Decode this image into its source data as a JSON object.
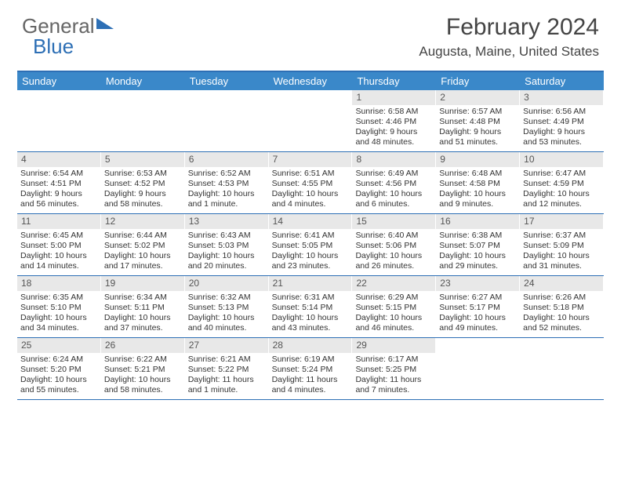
{
  "logo": {
    "part1": "General",
    "part2": "Blue"
  },
  "title": "February 2024",
  "location": "Augusta, Maine, United States",
  "daysOfWeek": [
    "Sunday",
    "Monday",
    "Tuesday",
    "Wednesday",
    "Thursday",
    "Friday",
    "Saturday"
  ],
  "colors": {
    "accent": "#2d6fb5",
    "headerBg": "#3a88c9",
    "dayNumBg": "#e8e8e8",
    "text": "#333333"
  },
  "weeks": [
    [
      {
        "empty": true
      },
      {
        "empty": true
      },
      {
        "empty": true
      },
      {
        "empty": true
      },
      {
        "day": "1",
        "sunrise": "Sunrise: 6:58 AM",
        "sunset": "Sunset: 4:46 PM",
        "daylight": "Daylight: 9 hours and 48 minutes."
      },
      {
        "day": "2",
        "sunrise": "Sunrise: 6:57 AM",
        "sunset": "Sunset: 4:48 PM",
        "daylight": "Daylight: 9 hours and 51 minutes."
      },
      {
        "day": "3",
        "sunrise": "Sunrise: 6:56 AM",
        "sunset": "Sunset: 4:49 PM",
        "daylight": "Daylight: 9 hours and 53 minutes."
      }
    ],
    [
      {
        "day": "4",
        "sunrise": "Sunrise: 6:54 AM",
        "sunset": "Sunset: 4:51 PM",
        "daylight": "Daylight: 9 hours and 56 minutes."
      },
      {
        "day": "5",
        "sunrise": "Sunrise: 6:53 AM",
        "sunset": "Sunset: 4:52 PM",
        "daylight": "Daylight: 9 hours and 58 minutes."
      },
      {
        "day": "6",
        "sunrise": "Sunrise: 6:52 AM",
        "sunset": "Sunset: 4:53 PM",
        "daylight": "Daylight: 10 hours and 1 minute."
      },
      {
        "day": "7",
        "sunrise": "Sunrise: 6:51 AM",
        "sunset": "Sunset: 4:55 PM",
        "daylight": "Daylight: 10 hours and 4 minutes."
      },
      {
        "day": "8",
        "sunrise": "Sunrise: 6:49 AM",
        "sunset": "Sunset: 4:56 PM",
        "daylight": "Daylight: 10 hours and 6 minutes."
      },
      {
        "day": "9",
        "sunrise": "Sunrise: 6:48 AM",
        "sunset": "Sunset: 4:58 PM",
        "daylight": "Daylight: 10 hours and 9 minutes."
      },
      {
        "day": "10",
        "sunrise": "Sunrise: 6:47 AM",
        "sunset": "Sunset: 4:59 PM",
        "daylight": "Daylight: 10 hours and 12 minutes."
      }
    ],
    [
      {
        "day": "11",
        "sunrise": "Sunrise: 6:45 AM",
        "sunset": "Sunset: 5:00 PM",
        "daylight": "Daylight: 10 hours and 14 minutes."
      },
      {
        "day": "12",
        "sunrise": "Sunrise: 6:44 AM",
        "sunset": "Sunset: 5:02 PM",
        "daylight": "Daylight: 10 hours and 17 minutes."
      },
      {
        "day": "13",
        "sunrise": "Sunrise: 6:43 AM",
        "sunset": "Sunset: 5:03 PM",
        "daylight": "Daylight: 10 hours and 20 minutes."
      },
      {
        "day": "14",
        "sunrise": "Sunrise: 6:41 AM",
        "sunset": "Sunset: 5:05 PM",
        "daylight": "Daylight: 10 hours and 23 minutes."
      },
      {
        "day": "15",
        "sunrise": "Sunrise: 6:40 AM",
        "sunset": "Sunset: 5:06 PM",
        "daylight": "Daylight: 10 hours and 26 minutes."
      },
      {
        "day": "16",
        "sunrise": "Sunrise: 6:38 AM",
        "sunset": "Sunset: 5:07 PM",
        "daylight": "Daylight: 10 hours and 29 minutes."
      },
      {
        "day": "17",
        "sunrise": "Sunrise: 6:37 AM",
        "sunset": "Sunset: 5:09 PM",
        "daylight": "Daylight: 10 hours and 31 minutes."
      }
    ],
    [
      {
        "day": "18",
        "sunrise": "Sunrise: 6:35 AM",
        "sunset": "Sunset: 5:10 PM",
        "daylight": "Daylight: 10 hours and 34 minutes."
      },
      {
        "day": "19",
        "sunrise": "Sunrise: 6:34 AM",
        "sunset": "Sunset: 5:11 PM",
        "daylight": "Daylight: 10 hours and 37 minutes."
      },
      {
        "day": "20",
        "sunrise": "Sunrise: 6:32 AM",
        "sunset": "Sunset: 5:13 PM",
        "daylight": "Daylight: 10 hours and 40 minutes."
      },
      {
        "day": "21",
        "sunrise": "Sunrise: 6:31 AM",
        "sunset": "Sunset: 5:14 PM",
        "daylight": "Daylight: 10 hours and 43 minutes."
      },
      {
        "day": "22",
        "sunrise": "Sunrise: 6:29 AM",
        "sunset": "Sunset: 5:15 PM",
        "daylight": "Daylight: 10 hours and 46 minutes."
      },
      {
        "day": "23",
        "sunrise": "Sunrise: 6:27 AM",
        "sunset": "Sunset: 5:17 PM",
        "daylight": "Daylight: 10 hours and 49 minutes."
      },
      {
        "day": "24",
        "sunrise": "Sunrise: 6:26 AM",
        "sunset": "Sunset: 5:18 PM",
        "daylight": "Daylight: 10 hours and 52 minutes."
      }
    ],
    [
      {
        "day": "25",
        "sunrise": "Sunrise: 6:24 AM",
        "sunset": "Sunset: 5:20 PM",
        "daylight": "Daylight: 10 hours and 55 minutes."
      },
      {
        "day": "26",
        "sunrise": "Sunrise: 6:22 AM",
        "sunset": "Sunset: 5:21 PM",
        "daylight": "Daylight: 10 hours and 58 minutes."
      },
      {
        "day": "27",
        "sunrise": "Sunrise: 6:21 AM",
        "sunset": "Sunset: 5:22 PM",
        "daylight": "Daylight: 11 hours and 1 minute."
      },
      {
        "day": "28",
        "sunrise": "Sunrise: 6:19 AM",
        "sunset": "Sunset: 5:24 PM",
        "daylight": "Daylight: 11 hours and 4 minutes."
      },
      {
        "day": "29",
        "sunrise": "Sunrise: 6:17 AM",
        "sunset": "Sunset: 5:25 PM",
        "daylight": "Daylight: 11 hours and 7 minutes."
      },
      {
        "empty": true
      },
      {
        "empty": true
      }
    ]
  ]
}
